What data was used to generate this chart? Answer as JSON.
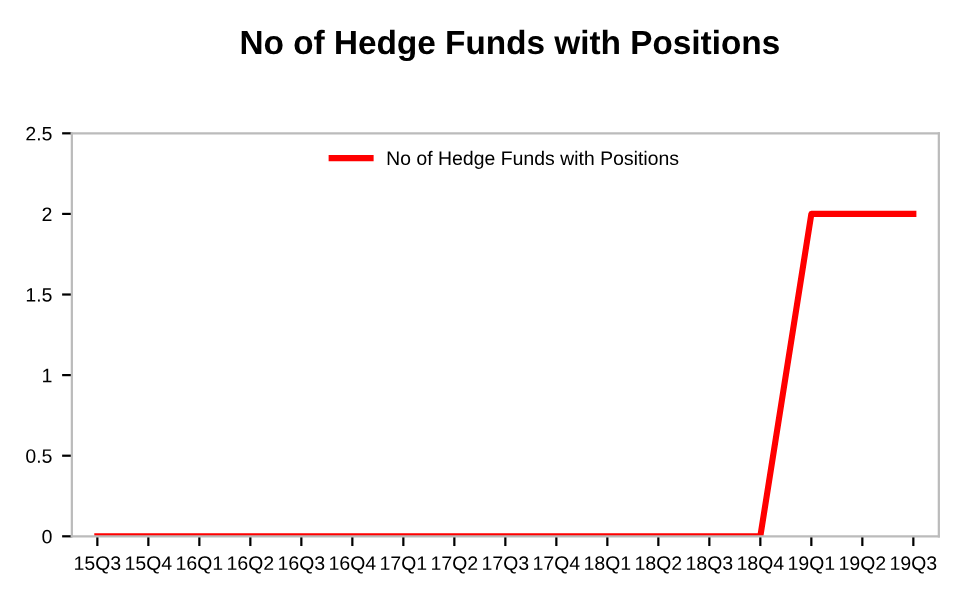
{
  "chart_data": {
    "type": "line",
    "title": "No of Hedge Funds with Positions",
    "categories": [
      "15Q3",
      "15Q4",
      "16Q1",
      "16Q2",
      "16Q3",
      "16Q4",
      "17Q1",
      "17Q2",
      "17Q3",
      "17Q4",
      "18Q1",
      "18Q2",
      "18Q3",
      "18Q4",
      "19Q1",
      "19Q2",
      "19Q3"
    ],
    "series": [
      {
        "name": "No of Hedge Funds with Positions",
        "color": "#ff0000",
        "values": [
          0,
          0,
          0,
          0,
          0,
          0,
          0,
          0,
          0,
          0,
          0,
          0,
          0,
          0,
          2,
          2,
          2
        ]
      }
    ],
    "ylim": [
      0,
      2.5
    ],
    "yticks": [
      0,
      0.5,
      1,
      1.5,
      2,
      2.5
    ],
    "grid": false,
    "legend": "top",
    "marker": "none",
    "line_style": "solid"
  }
}
